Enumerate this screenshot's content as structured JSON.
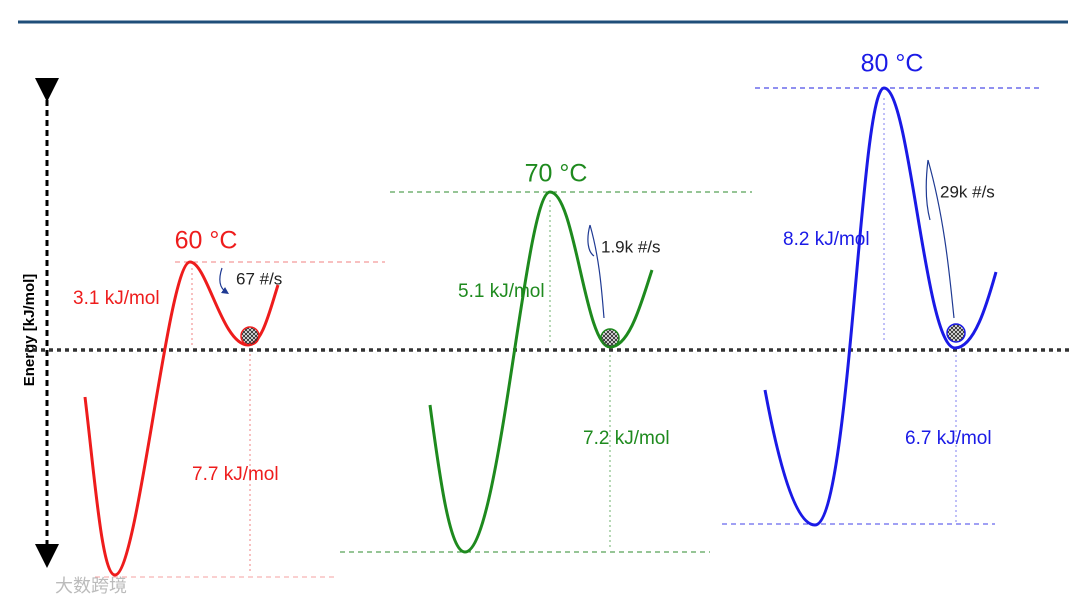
{
  "axis_label": "Energy [kJ/mol]",
  "panels": [
    {
      "temperature": "60 °C",
      "barrier": "3.1 kJ/mol",
      "rate": "67 #/s",
      "depth": "7.7 kJ/mol"
    },
    {
      "temperature": "70 °C",
      "barrier": "5.1 kJ/mol",
      "rate": "1.9k #/s",
      "depth": "7.2 kJ/mol"
    },
    {
      "temperature": "80 °C",
      "barrier": "8.2 kJ/mol",
      "rate": "29k #/s",
      "depth": "6.7 kJ/mol"
    }
  ],
  "watermark": "大数跨境"
}
